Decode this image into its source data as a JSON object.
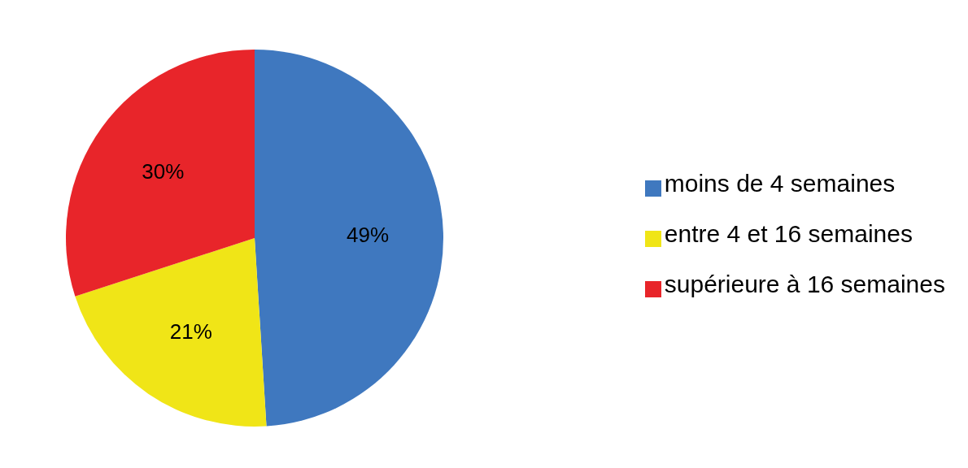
{
  "chart_data": {
    "type": "pie",
    "categories": [
      "moins de 4 semaines",
      "entre 4 et 16 semaines",
      "supérieure à 16 semaines"
    ],
    "values": [
      49,
      21,
      30
    ],
    "colors": [
      "#3f78bf",
      "#f0e517",
      "#e8252a"
    ],
    "value_labels": [
      "49%",
      "21%",
      "30%"
    ],
    "legend": "right"
  }
}
